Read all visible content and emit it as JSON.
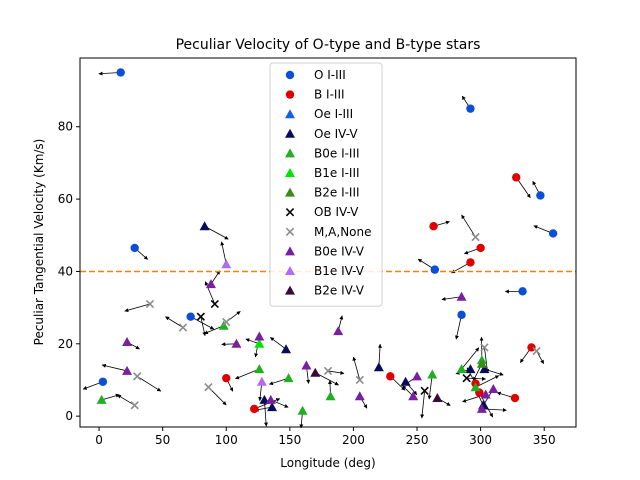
{
  "chart_data": {
    "type": "scatter",
    "title": "Peculiar Velocity of O-type and B-type stars",
    "xlabel": "Longitude (deg)",
    "ylabel": "Peculiar Tangential Velocity (Km/s)",
    "xlim": [
      -15,
      375
    ],
    "ylim": [
      -3,
      99
    ],
    "xticks": [
      0,
      50,
      100,
      150,
      200,
      250,
      300,
      350
    ],
    "yticks": [
      0,
      20,
      40,
      60,
      80
    ],
    "grid": false,
    "legend_position": "top-center",
    "reference_line": {
      "y": 40,
      "style": "dashed",
      "color": "#ff7f0e"
    },
    "series": [
      {
        "name": "O I-III",
        "marker": "circle",
        "color": "#0a4fd6",
        "points": [
          [
            17,
            95
          ],
          [
            28,
            46.5
          ],
          [
            3,
            9.5
          ],
          [
            72,
            27.5
          ],
          [
            264,
            40.5
          ],
          [
            285,
            28
          ],
          [
            292,
            85
          ],
          [
            333,
            34.5
          ],
          [
            347,
            61
          ],
          [
            357,
            50.5
          ]
        ]
      },
      {
        "name": "B I-III",
        "marker": "circle",
        "color": "#e00000",
        "points": [
          [
            100,
            10.5
          ],
          [
            122,
            2
          ],
          [
            229,
            11
          ],
          [
            263,
            52.5
          ],
          [
            292,
            42.5
          ],
          [
            296,
            9
          ],
          [
            299,
            6.5
          ],
          [
            300,
            46.5
          ],
          [
            327,
            5
          ],
          [
            328,
            66
          ],
          [
            340,
            19
          ]
        ]
      },
      {
        "name": "Oe I-III",
        "marker": "triangle",
        "color": "#1560e8",
        "points": []
      },
      {
        "name": "Oe IV-V",
        "marker": "triangle",
        "color": "#0a0a5a",
        "points": [
          [
            83,
            52.5
          ],
          [
            130,
            4.5
          ],
          [
            136,
            2.5
          ],
          [
            147,
            18.5
          ],
          [
            220,
            13.5
          ],
          [
            241,
            9.5
          ],
          [
            292,
            13
          ],
          [
            303,
            13
          ],
          [
            302,
            3
          ]
        ]
      },
      {
        "name": "B0e I-III",
        "marker": "triangle",
        "color": "#1fb01f",
        "points": [
          [
            2,
            4.5
          ],
          [
            98,
            25
          ],
          [
            126,
            13
          ],
          [
            149,
            10.5
          ],
          [
            160,
            1.5
          ],
          [
            182,
            5.5
          ],
          [
            262,
            11.5
          ],
          [
            285,
            13
          ],
          [
            296,
            8
          ],
          [
            301,
            15.5
          ]
        ]
      },
      {
        "name": "B1e I-III",
        "marker": "triangle",
        "color": "#00e600",
        "points": [
          [
            126,
            20
          ]
        ]
      },
      {
        "name": "B2e I-III",
        "marker": "triangle",
        "color": "#3a8c1a",
        "points": [
          [
            301,
            14.5
          ]
        ]
      },
      {
        "name": "OB IV-V",
        "marker": "x",
        "color": "#000000",
        "points": [
          [
            80,
            27.5
          ],
          [
            91,
            31
          ],
          [
            256,
            7
          ],
          [
            289,
            10.5
          ]
        ]
      },
      {
        "name": "M,A,None",
        "marker": "x",
        "color": "#8c8c8c",
        "points": [
          [
            28,
            3
          ],
          [
            30,
            11
          ],
          [
            40,
            31
          ],
          [
            66,
            24.5
          ],
          [
            86,
            8
          ],
          [
            100,
            26
          ],
          [
            180,
            12.5
          ],
          [
            205,
            10
          ],
          [
            296,
            49.5
          ],
          [
            303,
            19
          ],
          [
            344,
            18
          ]
        ]
      },
      {
        "name": "B0e IV-V",
        "marker": "triangle",
        "color": "#7a1fa0",
        "points": [
          [
            22,
            20.5
          ],
          [
            22,
            12.5
          ],
          [
            88,
            36.5
          ],
          [
            108,
            20
          ],
          [
            126,
            22
          ],
          [
            135,
            4.5
          ],
          [
            163,
            14
          ],
          [
            188,
            23.5
          ],
          [
            205,
            5.5
          ],
          [
            247,
            5.5
          ],
          [
            250,
            11
          ],
          [
            285,
            33
          ],
          [
            301,
            2
          ],
          [
            304,
            6
          ],
          [
            310,
            7.5
          ]
        ]
      },
      {
        "name": "B1e IV-V",
        "marker": "triangle",
        "color": "#b36bf0",
        "points": [
          [
            100,
            42
          ],
          [
            128,
            9.5
          ]
        ]
      },
      {
        "name": "B2e IV-V",
        "marker": "triangle",
        "color": "#3a0a3a",
        "points": [
          [
            170,
            12
          ],
          [
            266,
            5
          ]
        ]
      }
    ]
  }
}
